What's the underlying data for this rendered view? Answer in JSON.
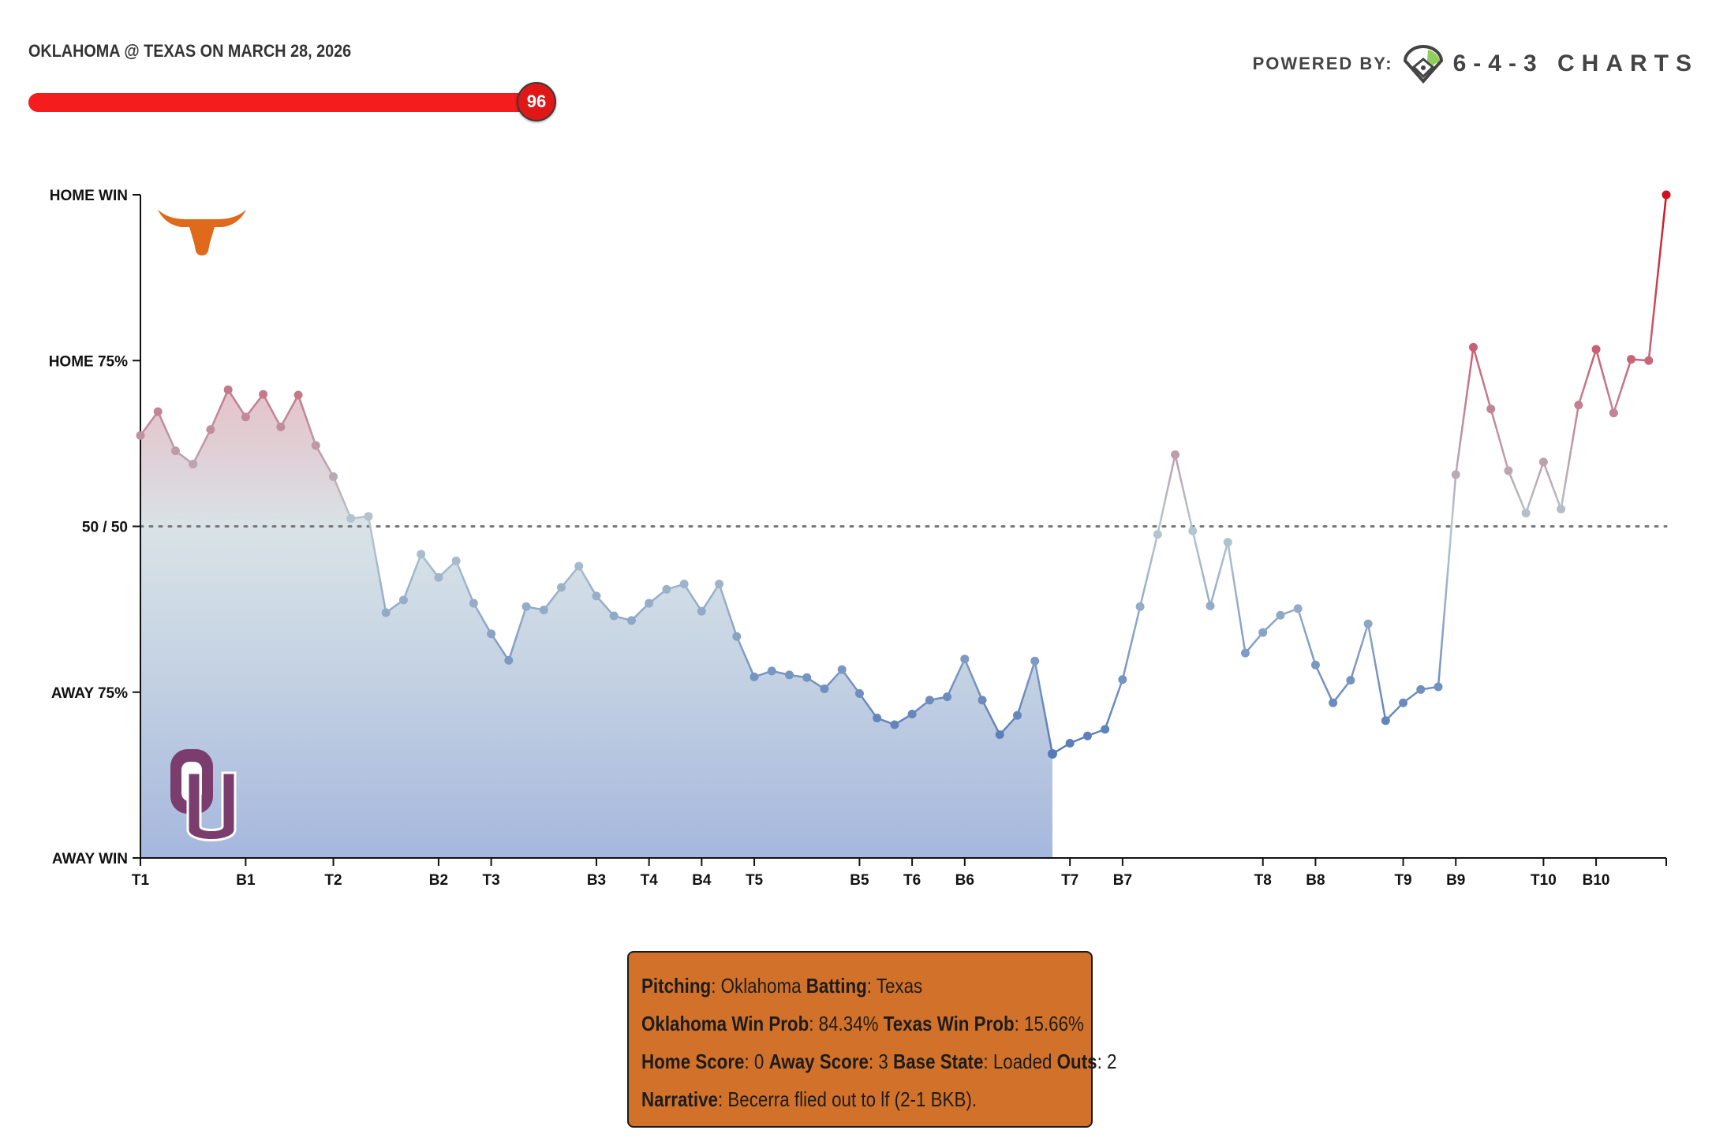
{
  "header": {
    "game_title": "OKLAHOMA @ TEXAS ON MARCH 28, 2026",
    "slider_value": 96,
    "slider_max": 100,
    "slider_color": "#f41c1c"
  },
  "branding": {
    "powered_by": "POWERED BY:",
    "brand_name": "6-4-3 CHARTS",
    "logo_icon": "baseball-diamond-icon"
  },
  "teams": {
    "home": {
      "name": "Texas",
      "logo_icon": "longhorn-icon",
      "color": "#e06a1c"
    },
    "away": {
      "name": "Oklahoma",
      "logo_icon": "ou-monogram-icon",
      "color": "#7a3d6e"
    }
  },
  "chart_data": {
    "type": "line",
    "title": "",
    "xlabel": "",
    "ylabel": "",
    "ylim": [
      0,
      100
    ],
    "y_ticks": [
      {
        "value": 100,
        "label": "HOME WIN"
      },
      {
        "value": 75,
        "label": "HOME 75%"
      },
      {
        "value": 50,
        "label": "50 / 50"
      },
      {
        "value": 25,
        "label": "AWAY 75%"
      },
      {
        "value": 0,
        "label": "AWAY WIN"
      }
    ],
    "x_ticks": [
      {
        "index": 0,
        "label": "T1"
      },
      {
        "index": 6,
        "label": "B1"
      },
      {
        "index": 11,
        "label": "T2"
      },
      {
        "index": 17,
        "label": "B2"
      },
      {
        "index": 20,
        "label": "T3"
      },
      {
        "index": 26,
        "label": "B3"
      },
      {
        "index": 29,
        "label": "T4"
      },
      {
        "index": 32,
        "label": "B4"
      },
      {
        "index": 35,
        "label": "T5"
      },
      {
        "index": 41,
        "label": "B5"
      },
      {
        "index": 44,
        "label": "T6"
      },
      {
        "index": 47,
        "label": "B6"
      },
      {
        "index": 53,
        "label": "T7"
      },
      {
        "index": 56,
        "label": "B7"
      },
      {
        "index": 64,
        "label": "T8"
      },
      {
        "index": 67,
        "label": "B8"
      },
      {
        "index": 72,
        "label": "T9"
      },
      {
        "index": 75,
        "label": "B9"
      },
      {
        "index": 80,
        "label": "T10"
      },
      {
        "index": 83,
        "label": "B10"
      }
    ],
    "x_max_index": 87,
    "reference_line": 50,
    "highlight_index": 52,
    "series": [
      {
        "values": [
          63.7,
          67.3,
          61.4,
          59.4,
          64.6,
          70.6,
          66.5,
          69.9,
          65.0,
          69.8,
          62.2,
          57.5,
          51.2,
          51.5,
          37.0,
          38.9,
          45.8,
          42.3,
          44.8,
          38.4,
          33.8,
          29.8,
          37.9,
          37.4,
          40.8,
          44.0,
          39.5,
          36.5,
          35.8,
          38.4,
          40.5,
          41.3,
          37.2,
          41.3,
          33.4,
          27.3,
          28.2,
          27.6,
          27.2,
          25.5,
          28.4,
          24.8,
          21.1,
          20.1,
          21.7,
          23.8,
          24.3,
          30.0,
          23.8,
          18.6,
          21.5,
          29.7,
          15.7,
          17.3,
          18.4,
          19.4,
          26.9,
          37.9,
          48.8,
          60.8,
          49.3,
          38.0,
          47.6,
          30.9,
          34.0,
          36.6,
          37.6,
          29.1,
          23.4,
          26.8,
          35.3,
          20.7,
          23.4,
          25.4,
          25.8,
          57.8,
          77.0,
          67.7,
          58.4,
          52.0,
          59.7,
          52.6,
          68.3,
          76.7,
          67.1,
          75.2,
          75.0,
          100.0
        ]
      }
    ]
  },
  "tooltip": {
    "pitching_label": "Pitching",
    "pitching_value": "Oklahoma",
    "batting_label": "Batting",
    "batting_value": "Texas",
    "away_prob_label": "Oklahoma Win Prob",
    "away_prob_value": "84.34%",
    "home_prob_label": "Texas Win Prob",
    "home_prob_value": "15.66%",
    "home_score_label": "Home Score",
    "home_score_value": "0",
    "away_score_label": "Away Score",
    "away_score_value": "3",
    "base_state_label": "Base State",
    "base_state_value": "Loaded",
    "outs_label": "Outs",
    "outs_value": "2",
    "narrative_label": "Narrative",
    "narrative_value": "Becerra flied out to lf (2-1 BKB)."
  }
}
